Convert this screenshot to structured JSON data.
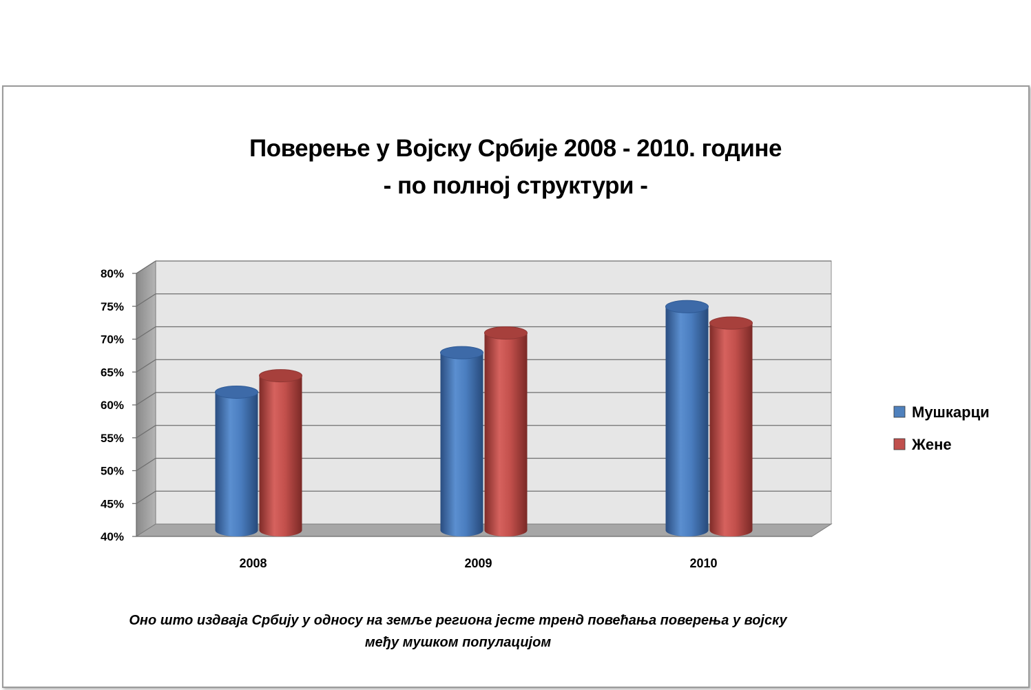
{
  "chart_data": {
    "type": "bar",
    "title": "Поверење у Војску Србије 2008 - 2010. године",
    "subtitle": "- по полној структури -",
    "categories": [
      "2008",
      "2009",
      "2010"
    ],
    "series": [
      {
        "name": "Мушкарци",
        "values": [
          61,
          67,
          74
        ],
        "color": "#4f81bd"
      },
      {
        "name": "Жене",
        "values": [
          63.5,
          70,
          71.5
        ],
        "color": "#c0504d"
      }
    ],
    "ylim": [
      40,
      80
    ],
    "yticks": [
      "40%",
      "45%",
      "50%",
      "55%",
      "60%",
      "65%",
      "70%",
      "75%",
      "80%"
    ],
    "xlabel": "",
    "ylabel": "",
    "grid": true,
    "legend_position": "right",
    "style": "3d-cylinder"
  },
  "caption": {
    "line1": "Оно што издваја Србију у односу на земље региона јесте тренд повећања поверења у војску",
    "line2": "међу мушком популацијом"
  }
}
